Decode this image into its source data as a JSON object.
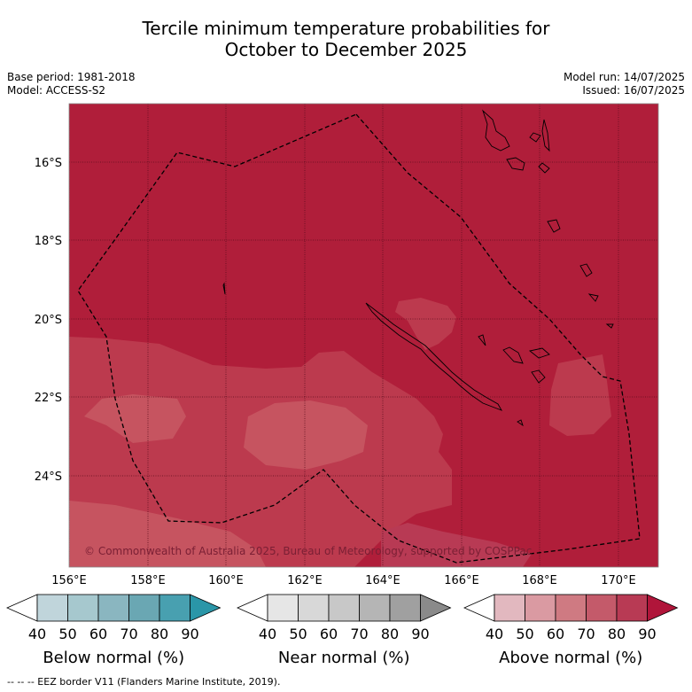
{
  "title": {
    "line1": "Tercile minimum temperature probabilities for",
    "line2": "October to December 2025"
  },
  "meta": {
    "base_period": "Base period: 1981-2018",
    "model": "Model: ACCESS-S2",
    "model_run": "Model run: 14/07/2025",
    "issued": "Issued: 16/07/2025"
  },
  "map": {
    "lon_ticks": [
      "156°E",
      "158°E",
      "160°E",
      "162°E",
      "164°E",
      "166°E",
      "168°E",
      "170°E"
    ],
    "lat_ticks": [
      "16°S",
      "18°S",
      "20°S",
      "22°S",
      "24°S"
    ],
    "copyright": "© Commonwealth of Australia 2025, Bureau of Meteorology, supported by COSPPac",
    "base_color": "#b01e3a",
    "lighter_color": "#bc3a4e",
    "lightest_color": "#c65460"
  },
  "colorbars": [
    {
      "label": "Below normal (%)",
      "ticks": [
        "40",
        "50",
        "60",
        "70",
        "80",
        "90"
      ],
      "colors": [
        "#c0d5db",
        "#a6c8ce",
        "#8ab6c0",
        "#6aa7b3",
        "#48a0b0",
        "#2a96a8"
      ]
    },
    {
      "label": "Near normal (%)",
      "ticks": [
        "40",
        "50",
        "60",
        "70",
        "80",
        "90"
      ],
      "colors": [
        "#e6e6e6",
        "#d8d8d8",
        "#c8c8c8",
        "#b5b5b5",
        "#a0a0a0",
        "#8a8a8a"
      ]
    },
    {
      "label": "Above normal (%)",
      "ticks": [
        "40",
        "50",
        "60",
        "70",
        "80",
        "90"
      ],
      "colors": [
        "#e2b8bf",
        "#da9aa2",
        "#cf7a82",
        "#c45a6a",
        "#b83a54",
        "#b0153a"
      ]
    }
  ],
  "footnote": "--  --  -- EEZ border V11 (Flanders Marine Institute, 2019)."
}
